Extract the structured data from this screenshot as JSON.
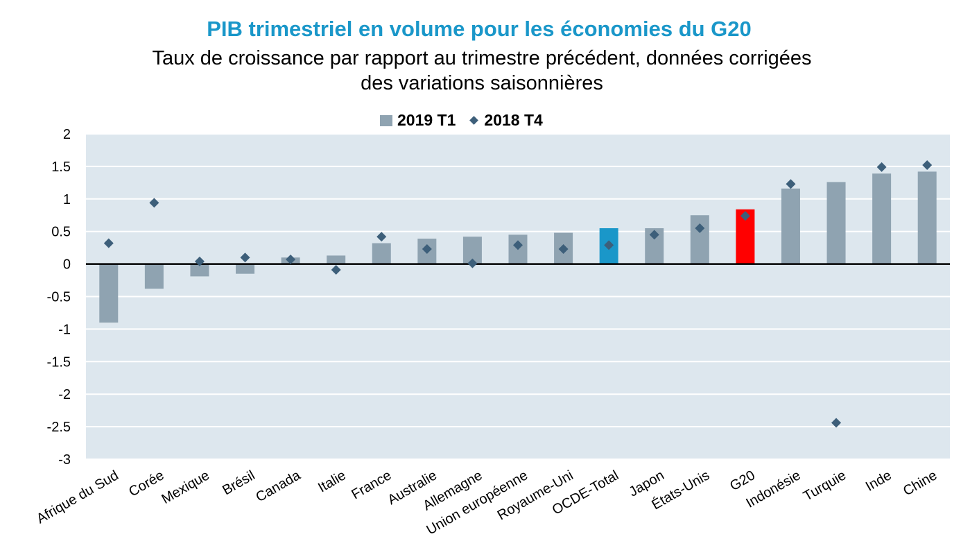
{
  "chart_data": {
    "type": "bar",
    "title": "PIB trimestriel en volume pour les économies du G20",
    "subtitle_lines": [
      "Taux de croissance par rapport au trimestre précédent, données corrigées",
      "des variations saisonnières"
    ],
    "categories": [
      "Afrique du Sud",
      "Corée",
      "Mexique",
      "Brésil",
      "Canada",
      "Italie",
      "France",
      "Australie",
      "Allemagne",
      "Union européenne",
      "Royaume-Uni",
      "OCDE-Total",
      "Japon",
      "États-Unis",
      "G20",
      "Indonésie",
      "Turquie",
      "Inde",
      "Chine"
    ],
    "series": [
      {
        "name": "2019 T1",
        "kind": "bar",
        "values": [
          -0.9,
          -0.38,
          -0.19,
          -0.15,
          0.1,
          0.13,
          0.32,
          0.39,
          0.42,
          0.45,
          0.48,
          0.55,
          0.55,
          0.75,
          0.84,
          1.16,
          1.26,
          1.39,
          1.42
        ]
      },
      {
        "name": "2018 T4",
        "kind": "marker",
        "values": [
          0.32,
          0.94,
          0.04,
          0.1,
          0.07,
          -0.09,
          0.42,
          0.23,
          0.01,
          0.29,
          0.23,
          0.29,
          0.45,
          0.55,
          0.74,
          1.23,
          -2.44,
          1.49,
          1.52
        ]
      }
    ],
    "highlight": {
      "OCDE-Total": "#1a97c9",
      "G20": "#ff0000"
    },
    "colors": {
      "bar": "#8fa3b1",
      "marker": "#3d5f7a",
      "plot_bg": "#dde7ee",
      "grid": "#ffffff",
      "title": "#1a97c9"
    },
    "ylim": [
      -3,
      2
    ],
    "yticks": [
      "2",
      "1.5",
      "1",
      "0.5",
      "0",
      "-0.5",
      "-1",
      "-1.5",
      "-2",
      "-2.5",
      "-3"
    ],
    "ytick_values": [
      2,
      1.5,
      1,
      0.5,
      0,
      -0.5,
      -1,
      -1.5,
      -2,
      -2.5,
      -3
    ],
    "legend_position": "top-center",
    "grid": true
  }
}
